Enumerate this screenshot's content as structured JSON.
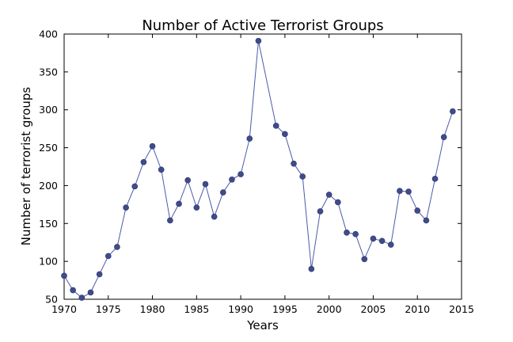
{
  "chart_data": {
    "type": "line",
    "title": "Number of Active Terrorist Groups",
    "xlabel": "Years",
    "ylabel": "Number of terrorist groups",
    "xlim": [
      1970,
      2015
    ],
    "ylim": [
      50,
      400
    ],
    "xticks": [
      1970,
      1975,
      1980,
      1985,
      1990,
      1995,
      2000,
      2005,
      2010,
      2015
    ],
    "yticks": [
      50,
      100,
      150,
      200,
      250,
      300,
      350,
      400
    ],
    "grid": false,
    "line_color": "#4a5aa8",
    "marker_color": "#3f4b8c",
    "series": [
      {
        "x": [
          1970,
          1971,
          1972,
          1973,
          1974,
          1975,
          1976,
          1977,
          1978,
          1979,
          1980,
          1981,
          1982,
          1983,
          1984,
          1985,
          1986,
          1987,
          1988,
          1989,
          1990,
          1991,
          1992,
          1994,
          1995,
          1996,
          1997,
          1998,
          1999,
          2000,
          2001,
          2002,
          2003,
          2004,
          2005,
          2006,
          2007,
          2008,
          2009,
          2010,
          2011,
          2012,
          2013,
          2014
        ],
        "y": [
          81,
          62,
          52,
          59,
          83,
          107,
          119,
          171,
          199,
          231,
          252,
          221,
          154,
          176,
          207,
          171,
          202,
          159,
          191,
          208,
          215,
          262,
          391,
          279,
          268,
          229,
          212,
          90,
          166,
          188,
          178,
          138,
          136,
          103,
          130,
          127,
          122,
          193,
          192,
          167,
          154,
          209,
          264,
          298
        ]
      }
    ]
  }
}
